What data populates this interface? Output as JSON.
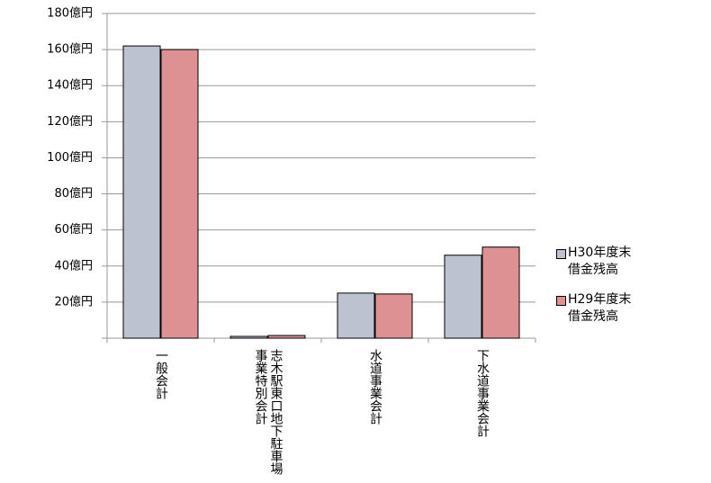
{
  "chart_data": {
    "type": "bar",
    "categories": [
      "一般会計",
      "志木駅東口地下駐車場事業特別会計",
      "水道事業会計",
      "下水道事業会計"
    ],
    "series": [
      {
        "name": "H30年度末借金残高",
        "color": "#bcc2cf",
        "values": [
          162,
          1,
          25,
          46
        ]
      },
      {
        "name": "H29年度末借金残高",
        "color": "#de9192",
        "values": [
          160,
          1.5,
          24.5,
          50.5
        ]
      }
    ],
    "ylim": [
      0,
      180
    ],
    "yticks": [
      {
        "value": 20,
        "label": "20億円"
      },
      {
        "value": 40,
        "label": "40億円"
      },
      {
        "value": 60,
        "label": "60億円"
      },
      {
        "value": 80,
        "label": "80億円"
      },
      {
        "value": 100,
        "label": "100億円"
      },
      {
        "value": 120,
        "label": "120億円"
      },
      {
        "value": 140,
        "label": "140億円"
      },
      {
        "value": 160,
        "label": "160億円"
      },
      {
        "value": 180,
        "label": "180億円"
      }
    ],
    "grid": true,
    "legend": "right"
  }
}
